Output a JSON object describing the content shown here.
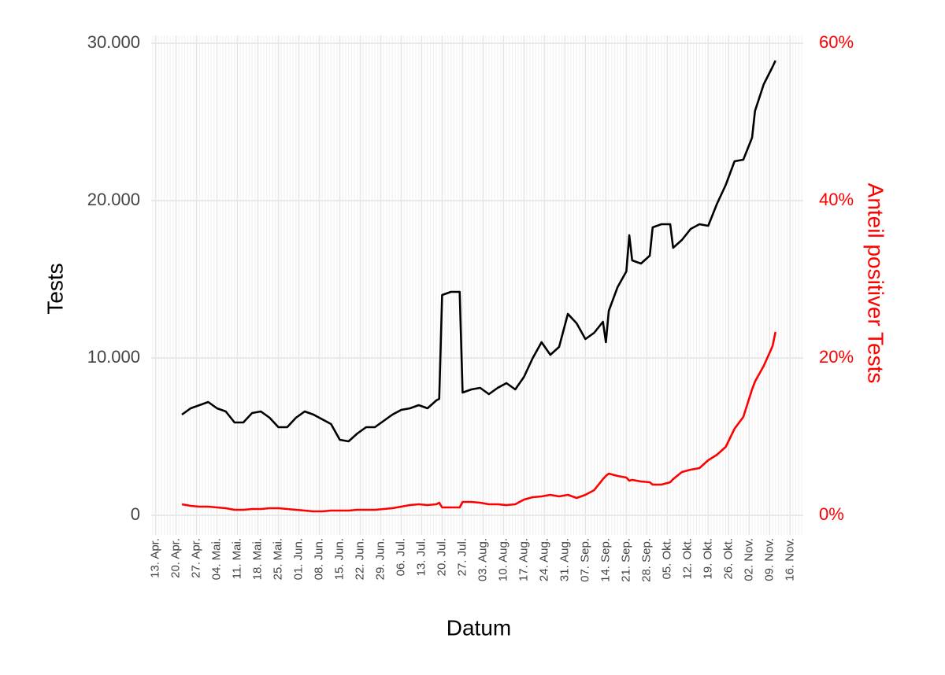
{
  "chart_data": {
    "type": "line",
    "x_label": "Datum",
    "y_label": "Tests",
    "y2_label": "Anteil positiver Tests",
    "x": [
      9,
      12,
      15,
      18,
      21,
      24,
      27,
      30,
      33,
      36,
      39,
      42,
      45,
      48,
      51,
      54,
      57,
      60,
      63,
      66,
      69,
      72,
      75,
      78,
      81,
      84,
      87,
      90,
      93,
      96,
      97,
      98,
      101,
      104,
      105,
      108,
      111,
      114,
      117,
      120,
      123,
      126,
      129,
      132,
      135,
      138,
      141,
      144,
      147,
      150,
      153,
      154,
      155,
      158,
      161,
      162,
      163,
      166,
      169,
      170,
      173,
      176,
      177,
      180,
      183,
      186,
      189,
      192,
      195,
      198,
      201,
      204,
      205,
      208,
      211,
      212
    ],
    "series": [
      {
        "name": "Tests",
        "color": "#000000",
        "axis": "y",
        "values": [
          6400,
          6800,
          7000,
          7200,
          6800,
          6600,
          5900,
          5900,
          6500,
          6600,
          6200,
          5600,
          5600,
          6200,
          6600,
          6400,
          6100,
          5800,
          4800,
          4700,
          5200,
          5600,
          5600,
          6000,
          6400,
          6700,
          6800,
          7000,
          6800,
          7300,
          7400,
          14000,
          14200,
          14200,
          7800,
          8000,
          8100,
          7700,
          8100,
          8400,
          8000,
          8800,
          10000,
          11000,
          10200,
          10700,
          12800,
          12200,
          11200,
          11600,
          12300,
          11000,
          13000,
          14500,
          15500,
          17800,
          16200,
          16000,
          16500,
          18300,
          18500,
          18500,
          17000,
          17500,
          18200,
          18500,
          18400,
          19800,
          21000,
          22500,
          22600,
          24000,
          25700,
          27400,
          28500,
          28900
        ]
      },
      {
        "name": "Anteil positiver Tests",
        "color": "#ff0000",
        "axis": "y2",
        "values": [
          1.4,
          1.2,
          1.1,
          1.1,
          1.0,
          0.9,
          0.7,
          0.7,
          0.8,
          0.8,
          0.9,
          0.9,
          0.8,
          0.7,
          0.6,
          0.5,
          0.5,
          0.6,
          0.6,
          0.6,
          0.7,
          0.7,
          0.7,
          0.8,
          0.9,
          1.1,
          1.3,
          1.4,
          1.3,
          1.4,
          1.6,
          1.0,
          1.0,
          1.0,
          1.7,
          1.7,
          1.6,
          1.4,
          1.4,
          1.3,
          1.4,
          2.0,
          2.3,
          2.4,
          2.6,
          2.4,
          2.6,
          2.2,
          2.6,
          3.2,
          4.6,
          5.0,
          5.3,
          5.0,
          4.8,
          4.4,
          4.5,
          4.3,
          4.2,
          3.9,
          3.9,
          4.2,
          4.6,
          5.5,
          5.8,
          6.0,
          7.0,
          7.7,
          8.7,
          11.0,
          12.5,
          16.0,
          17.0,
          19.0,
          21.5,
          23.3
        ]
      }
    ],
    "xlim": [
      -1.5,
      221.5
    ],
    "xticks": [
      {
        "value": 0,
        "label": "13. Apr."
      },
      {
        "value": 7,
        "label": "20. Apr."
      },
      {
        "value": 14,
        "label": "27. Apr."
      },
      {
        "value": 21,
        "label": "04. Mai."
      },
      {
        "value": 28,
        "label": "11. Mai."
      },
      {
        "value": 35,
        "label": "18. Mai."
      },
      {
        "value": 42,
        "label": "25. Mai."
      },
      {
        "value": 49,
        "label": "01. Jun."
      },
      {
        "value": 56,
        "label": "08. Jun."
      },
      {
        "value": 63,
        "label": "15. Jun."
      },
      {
        "value": 70,
        "label": "22. Jun."
      },
      {
        "value": 77,
        "label": "29. Jun."
      },
      {
        "value": 84,
        "label": "06. Jul."
      },
      {
        "value": 91,
        "label": "13. Jul."
      },
      {
        "value": 98,
        "label": "20. Jul."
      },
      {
        "value": 105,
        "label": "27. Jul."
      },
      {
        "value": 112,
        "label": "03. Aug."
      },
      {
        "value": 119,
        "label": "10. Aug."
      },
      {
        "value": 126,
        "label": "17. Aug."
      },
      {
        "value": 133,
        "label": "24. Aug."
      },
      {
        "value": 140,
        "label": "31. Aug."
      },
      {
        "value": 147,
        "label": "07. Sep."
      },
      {
        "value": 154,
        "label": "14. Sep."
      },
      {
        "value": 161,
        "label": "21. Sep."
      },
      {
        "value": 168,
        "label": "28. Sep."
      },
      {
        "value": 175,
        "label": "05. Okt."
      },
      {
        "value": 182,
        "label": "12. Okt."
      },
      {
        "value": 189,
        "label": "19. Okt."
      },
      {
        "value": 196,
        "label": "26. Okt."
      },
      {
        "value": 203,
        "label": "02. Nov."
      },
      {
        "value": 210,
        "label": "09. Nov."
      },
      {
        "value": 217,
        "label": "16. Nov."
      }
    ],
    "ylim": [
      -1250,
      30500
    ],
    "yticks": [
      0,
      {
        "value": 10000,
        "label": "10.000"
      },
      {
        "value": 20000,
        "label": "20.000"
      },
      {
        "value": 30000,
        "label": "30.000"
      }
    ],
    "y2lim": [
      -2.5,
      61
    ],
    "y2ticks": [
      {
        "value": 0,
        "label": "0%"
      },
      {
        "value": 20,
        "label": "20%"
      },
      {
        "value": 40,
        "label": "40%"
      },
      {
        "value": 60,
        "label": "60%"
      }
    ],
    "grid": true
  }
}
